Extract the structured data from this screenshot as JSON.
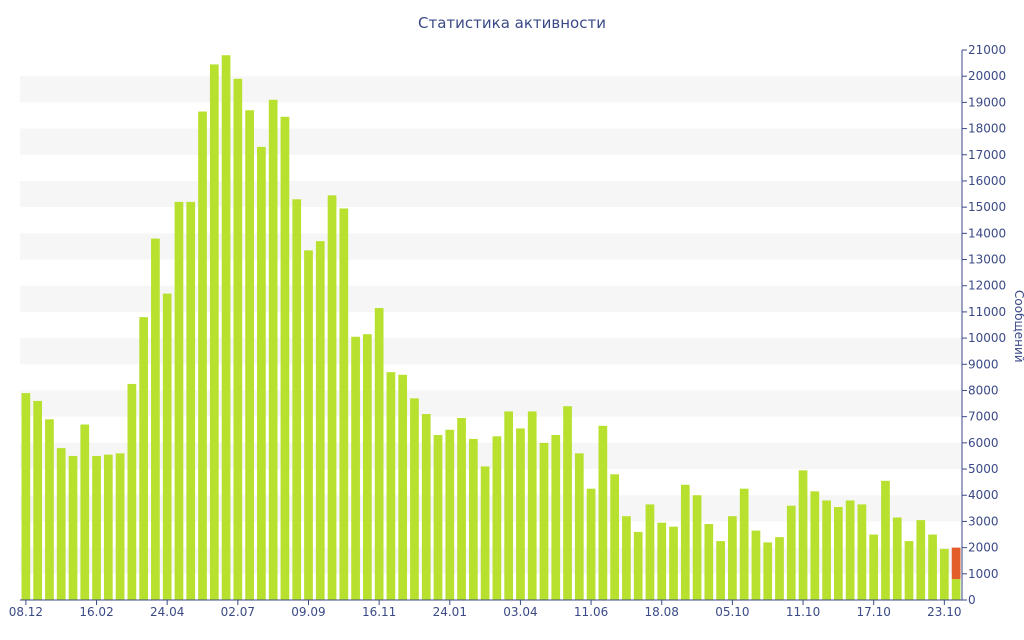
{
  "chart_data": {
    "type": "bar",
    "title": "Статистика активности",
    "ylabel": "Сообщений",
    "xlabel": "",
    "ylim": [
      0,
      21000
    ],
    "y_ticks": [
      "0",
      "1000",
      "2000",
      "3000",
      "4000",
      "5000",
      "6000",
      "7000",
      "8000",
      "9000",
      "10000",
      "11000",
      "12000",
      "13000",
      "14000",
      "15000",
      "16000",
      "17000",
      "18000",
      "19000",
      "20000",
      "21000"
    ],
    "x_ticks": [
      {
        "index": 0,
        "label": "08.12"
      },
      {
        "index": 6,
        "label": "16.02"
      },
      {
        "index": 12,
        "label": "24.04"
      },
      {
        "index": 18,
        "label": "02.07"
      },
      {
        "index": 24,
        "label": "09.09"
      },
      {
        "index": 30,
        "label": "16.11"
      },
      {
        "index": 36,
        "label": "24.01"
      },
      {
        "index": 42,
        "label": "03.04"
      },
      {
        "index": 48,
        "label": "11.06"
      },
      {
        "index": 54,
        "label": "18.08"
      },
      {
        "index": 60,
        "label": "05.10"
      },
      {
        "index": 66,
        "label": "11.10"
      },
      {
        "index": 72,
        "label": "17.10"
      },
      {
        "index": 78,
        "label": "23.10"
      }
    ],
    "values": [
      7900,
      7600,
      6900,
      5800,
      5500,
      6700,
      5500,
      5550,
      5600,
      8250,
      10800,
      13800,
      11700,
      15200,
      15200,
      18650,
      20450,
      20800,
      19900,
      18700,
      17300,
      19100,
      18450,
      15300,
      13350,
      13700,
      15450,
      14950,
      10050,
      10150,
      11150,
      8700,
      8600,
      7700,
      7100,
      6300,
      6500,
      6950,
      6150,
      5100,
      6250,
      7200,
      6550,
      7200,
      6000,
      6300,
      7400,
      5600,
      4250,
      6650,
      4800,
      3200,
      2600,
      3650,
      2950,
      2800,
      4400,
      4000,
      2900,
      2250,
      3200,
      4250,
      2650,
      2200,
      2400,
      3600,
      4950,
      4150,
      3800,
      3550,
      3800,
      3650,
      2500,
      4550,
      3150,
      2250,
      3050,
      2500,
      1950,
      2000
    ],
    "last_bar_split": {
      "green": 800,
      "orange": 1200
    },
    "colors": {
      "bar": "#b8e02e",
      "bar_current": "#e35d2a",
      "axis": "#3b4a86",
      "stripe": "#f6f6f6",
      "text": "#3b4a86"
    },
    "grid": "alternating-bands",
    "y_axis_position": "right"
  }
}
